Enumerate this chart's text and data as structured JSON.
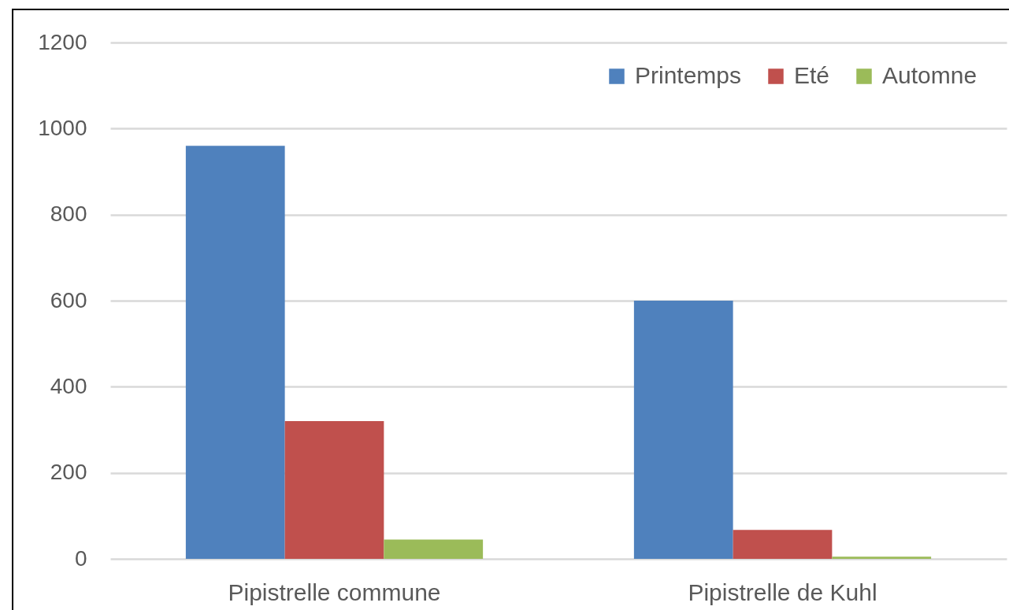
{
  "chart_data": {
    "type": "bar",
    "categories": [
      "Pipistrelle commune",
      "Pipistrelle de Kuhl"
    ],
    "series": [
      {
        "name": "Printemps",
        "color": "#4f81bd",
        "values": [
          960,
          600
        ]
      },
      {
        "name": "Eté",
        "color": "#c0504d",
        "values": [
          320,
          67
        ]
      },
      {
        "name": "Automne",
        "color": "#9bbb59",
        "values": [
          45,
          5
        ]
      }
    ],
    "ylim": [
      0,
      1200
    ],
    "yticks": [
      0,
      200,
      400,
      600,
      800,
      1000,
      1200
    ],
    "grid": "y",
    "legend": "top right"
  }
}
